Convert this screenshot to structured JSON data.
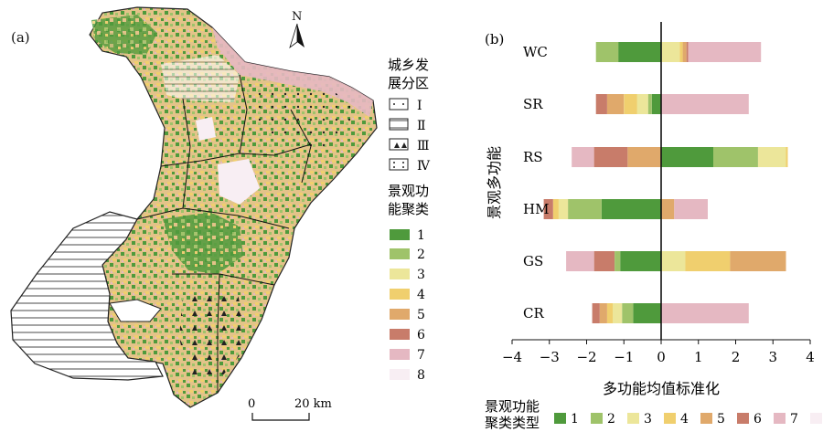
{
  "panel_a": {
    "label": "(a)",
    "north": "N",
    "zone_legend": {
      "title_lines": [
        "城乡发",
        "展分区"
      ],
      "items": [
        "Ⅰ",
        "Ⅱ",
        "Ⅲ",
        "Ⅳ"
      ]
    },
    "cluster_legend": {
      "title_lines": [
        "景观功",
        "能聚类"
      ],
      "items": [
        "1",
        "2",
        "3",
        "4",
        "5",
        "6",
        "7",
        "8"
      ]
    },
    "scale": {
      "start": "0",
      "end": "20 km"
    }
  },
  "colors": {
    "c1": "#4f9a3c",
    "c2": "#9fc36a",
    "c3": "#ece69a",
    "c4": "#f0cf6e",
    "c5": "#e0a96b",
    "c6": "#c87c6a",
    "c7": "#e5b8c2",
    "c8": "#f8eef3"
  },
  "chart_data": {
    "type": "bar",
    "stacked": true,
    "orientation": "horizontal",
    "panel_label": "(b)",
    "categories": [
      "WC",
      "SR",
      "RS",
      "HM",
      "GS",
      "CR"
    ],
    "xlabel": "多功能均值标准化",
    "ylabel": "景观多功能",
    "xlim": [
      -4,
      4
    ],
    "xticks": [
      "−4",
      "−3",
      "−2",
      "−1",
      "0",
      "1",
      "2",
      "3",
      "4"
    ],
    "legend_title": [
      "景观功能",
      "聚类类型"
    ],
    "legend_position": "bottom",
    "series": [
      {
        "name": "1",
        "color": "#4f9a3c",
        "values": [
          -1.15,
          -0.25,
          1.4,
          -1.6,
          -1.1,
          -0.75
        ]
      },
      {
        "name": "2",
        "color": "#9fc36a",
        "values": [
          -0.6,
          -0.1,
          1.2,
          -0.9,
          -0.15,
          -0.3
        ]
      },
      {
        "name": "3",
        "color": "#ece69a",
        "values": [
          0.5,
          -0.3,
          0.75,
          -0.25,
          0.65,
          -0.25
        ]
      },
      {
        "name": "4",
        "color": "#f0cf6e",
        "values": [
          0.08,
          -0.35,
          0.05,
          -0.15,
          1.2,
          -0.15
        ]
      },
      {
        "name": "5",
        "color": "#e0a96b",
        "values": [
          0.1,
          -0.45,
          -0.9,
          0.35,
          1.5,
          -0.2
        ]
      },
      {
        "name": "6",
        "color": "#c87c6a",
        "values": [
          0.05,
          -0.3,
          -0.9,
          -0.25,
          -0.55,
          -0.2
        ]
      },
      {
        "name": "7",
        "color": "#e5b8c2",
        "values": [
          1.95,
          2.35,
          -0.6,
          0.9,
          -0.75,
          2.35
        ]
      },
      {
        "name": "8",
        "color": "#f8eef3",
        "values": [
          0,
          0,
          0,
          0,
          0,
          0
        ]
      }
    ]
  }
}
